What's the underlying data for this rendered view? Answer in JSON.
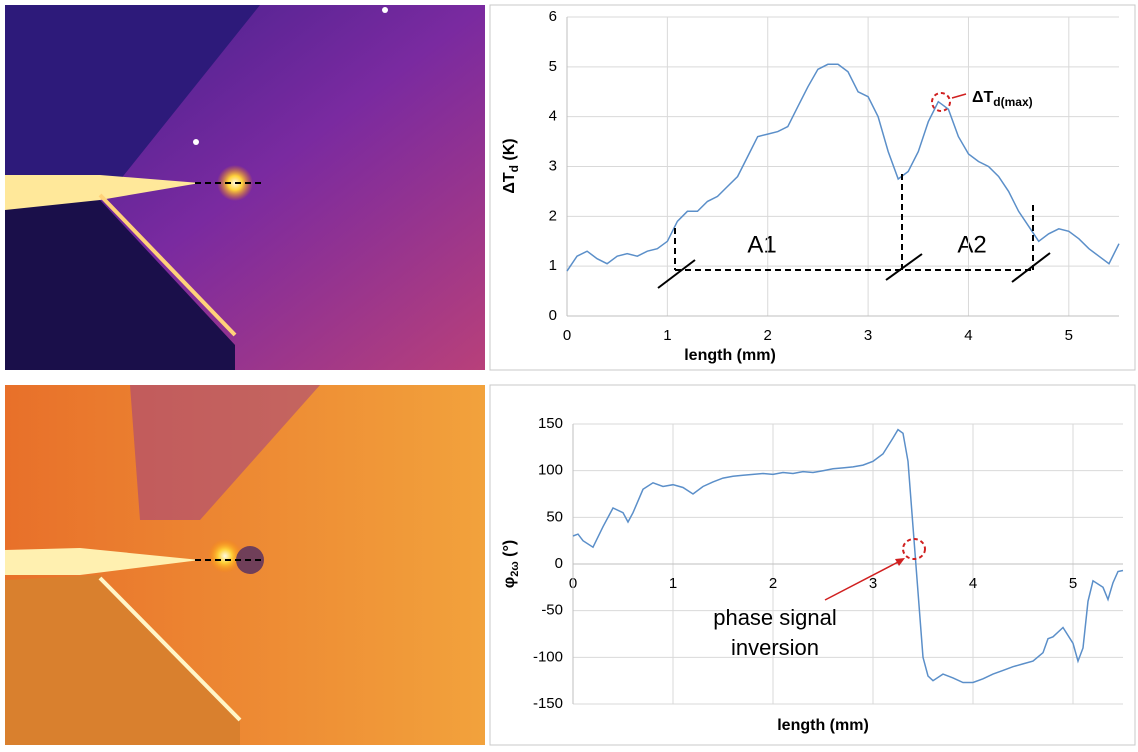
{
  "chart_data": [
    {
      "type": "line",
      "xlabel": "length (mm)",
      "ylabel": {
        "main": "ΔT",
        "sub": "d",
        "unit": "(K)"
      },
      "annotations": [
        "A1",
        "A2"
      ],
      "peak_label": {
        "main": "ΔT",
        "sub": "d(max)"
      },
      "color": "#5b8fc9",
      "xlim": [
        0,
        5.5
      ],
      "xticks": [
        0,
        1,
        2,
        3,
        4,
        5
      ],
      "ylim": [
        0,
        6
      ],
      "yticks": [
        0,
        1,
        2,
        3,
        4,
        5,
        6
      ],
      "grid": true,
      "x": [
        0,
        0.1,
        0.2,
        0.3,
        0.4,
        0.5,
        0.6,
        0.7,
        0.8,
        0.9,
        1.0,
        1.1,
        1.2,
        1.3,
        1.4,
        1.5,
        1.6,
        1.7,
        1.8,
        1.9,
        2.0,
        2.1,
        2.2,
        2.3,
        2.4,
        2.5,
        2.6,
        2.7,
        2.8,
        2.9,
        3.0,
        3.1,
        3.2,
        3.3,
        3.4,
        3.5,
        3.6,
        3.7,
        3.8,
        3.9,
        4.0,
        4.1,
        4.2,
        4.3,
        4.4,
        4.5,
        4.6,
        4.7,
        4.8,
        4.9,
        5.0,
        5.1,
        5.2,
        5.3,
        5.4,
        5.5
      ],
      "values": [
        0.9,
        1.2,
        1.3,
        1.15,
        1.05,
        1.2,
        1.25,
        1.2,
        1.3,
        1.35,
        1.5,
        1.9,
        2.1,
        2.1,
        2.3,
        2.4,
        2.6,
        2.8,
        3.2,
        3.6,
        3.65,
        3.7,
        3.8,
        4.2,
        4.6,
        4.95,
        5.05,
        5.05,
        4.9,
        4.5,
        4.4,
        4.0,
        3.3,
        2.75,
        2.9,
        3.3,
        3.9,
        4.3,
        4.15,
        3.6,
        3.25,
        3.1,
        3.0,
        2.8,
        2.5,
        2.1,
        1.8,
        1.5,
        1.65,
        1.75,
        1.7,
        1.55,
        1.35,
        1.2,
        1.05,
        1.45
      ]
    },
    {
      "type": "line",
      "xlabel": "length (mm)",
      "ylabel": {
        "main": "φ",
        "sub": "2ω",
        "unit": "(°)"
      },
      "annotation": [
        "phase signal",
        "inversion"
      ],
      "color": "#5b8fc9",
      "xlim": [
        0,
        5.5
      ],
      "xticks": [
        0,
        1,
        2,
        3,
        4,
        5
      ],
      "ylim": [
        -150,
        150
      ],
      "yticks": [
        -150,
        -100,
        -50,
        0,
        50,
        100,
        150
      ],
      "grid": true,
      "x": [
        0,
        0.05,
        0.1,
        0.2,
        0.3,
        0.4,
        0.5,
        0.55,
        0.6,
        0.7,
        0.8,
        0.9,
        1.0,
        1.1,
        1.2,
        1.3,
        1.4,
        1.5,
        1.6,
        1.7,
        1.8,
        1.9,
        2.0,
        2.1,
        2.2,
        2.3,
        2.4,
        2.5,
        2.6,
        2.7,
        2.8,
        2.9,
        3.0,
        3.1,
        3.2,
        3.25,
        3.3,
        3.35,
        3.4,
        3.45,
        3.5,
        3.55,
        3.6,
        3.7,
        3.8,
        3.9,
        4.0,
        4.1,
        4.2,
        4.3,
        4.4,
        4.5,
        4.6,
        4.7,
        4.75,
        4.8,
        4.9,
        5.0,
        5.05,
        5.1,
        5.15,
        5.2,
        5.3,
        5.35,
        5.4,
        5.45,
        5.5
      ],
      "values": [
        30,
        32,
        25,
        18,
        40,
        60,
        55,
        45,
        55,
        80,
        87,
        83,
        85,
        82,
        75,
        83,
        88,
        92,
        94,
        95,
        96,
        97,
        96,
        98,
        97,
        99,
        98,
        100,
        102,
        103,
        104,
        106,
        110,
        118,
        135,
        144,
        140,
        110,
        40,
        -30,
        -100,
        -120,
        -125,
        -118,
        -122,
        -127,
        -127,
        -123,
        -118,
        -114,
        -110,
        -107,
        -104,
        -95,
        -80,
        -78,
        -68,
        -85,
        -104,
        -90,
        -40,
        -18,
        -25,
        -38,
        -20,
        -8,
        -7
      ]
    }
  ]
}
